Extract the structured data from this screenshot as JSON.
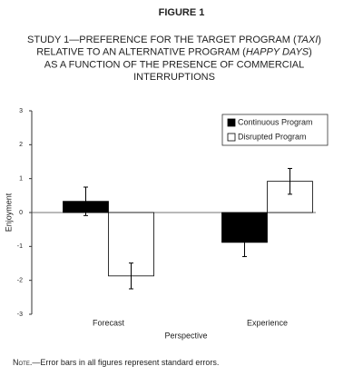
{
  "header": {
    "figure": "FIGURE 1",
    "title_lines": [
      [
        {
          "text": "STUDY 1—PREFERENCE FOR THE TARGET PROGRAM ("
        },
        {
          "text": "TAXI",
          "italic": true
        },
        {
          "text": ")"
        }
      ],
      [
        {
          "text": "RELATIVE TO AN ALTERNATIVE PROGRAM ("
        },
        {
          "text": "HAPPY DAYS",
          "italic": true
        },
        {
          "text": ")"
        }
      ],
      [
        {
          "text": "AS A FUNCTION OF THE PRESENCE OF COMMERCIAL"
        }
      ],
      [
        {
          "text": "INTERRUPTIONS"
        }
      ]
    ]
  },
  "chart_data": {
    "type": "bar",
    "y_label": "Enjoyment",
    "x_label": "Perspective",
    "categories": [
      "Forecast",
      "Experience"
    ],
    "series": [
      {
        "name": "Continuous Program",
        "color": "#000000",
        "values": [
          0.33,
          -0.88
        ],
        "errors": [
          0.42,
          0.42
        ]
      },
      {
        "name": "Disrupted Program",
        "color": "#ffffff",
        "values": [
          -1.87,
          0.92
        ],
        "errors": [
          0.38,
          0.38
        ]
      }
    ],
    "ylim": [
      -3,
      3
    ],
    "yticks": [
      -3,
      -2,
      -1,
      0,
      1,
      2,
      3
    ],
    "legend": "upper right"
  },
  "note": {
    "lead": "Note.—",
    "text": "Error bars in all figures represent standard errors."
  }
}
